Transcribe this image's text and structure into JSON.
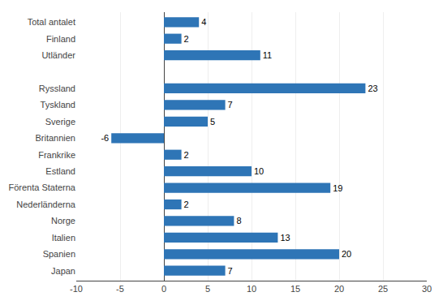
{
  "chart_data": {
    "type": "bar",
    "orientation": "horizontal",
    "categories": [
      "Japan",
      "Spanien",
      "Italien",
      "Norge",
      "Nederländerna",
      "Förenta Staterna",
      "Estland",
      "Frankrike",
      "Britannien",
      "Sverige",
      "Tyskland",
      "Ryssland",
      null,
      "Utländer",
      "Finland",
      "Total antalet"
    ],
    "values": [
      7,
      20,
      13,
      8,
      2,
      19,
      10,
      2,
      -6,
      5,
      7,
      23,
      null,
      11,
      2,
      4
    ],
    "color": "#2E75B6",
    "xlim": [
      -10,
      30
    ],
    "xticks": [
      -10,
      -5,
      0,
      5,
      10,
      15,
      20,
      25,
      30
    ],
    "grid": true,
    "data_labels": true
  }
}
